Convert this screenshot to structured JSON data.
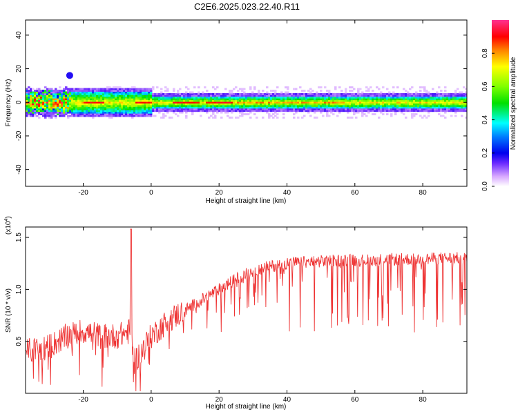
{
  "chart_data": [
    {
      "type": "heatmap",
      "title": "C2E6.2025.023.22.40.R11",
      "xlabel": "Height of straight line (km)",
      "ylabel": "Frequency (Hz)",
      "xlim": [
        -37,
        93
      ],
      "ylim": [
        -50,
        49
      ],
      "xticks": [
        "-20",
        "0",
        "20",
        "40",
        "60",
        "80"
      ],
      "yticks": [
        "40",
        "20",
        "0",
        "-20",
        "-40"
      ],
      "colorbar": {
        "label": "Normalized spectral amplitude",
        "range": [
          0,
          1
        ],
        "ticks": [
          "0.0",
          "0.2",
          "0.4",
          "0.6",
          "0.8"
        ]
      },
      "band": {
        "center_freq_hz": 0,
        "half_width_hz_far": 3.5,
        "half_width_hz_near": 6,
        "noisy_region_km": [
          -37,
          -24
        ],
        "isolated_patch": {
          "x_km": -24,
          "freq_hz": 16
        }
      }
    },
    {
      "type": "line",
      "title": "",
      "xlabel": "Height of straight line (km)",
      "ylabel": "SNR (10 * v/v)",
      "multiplier": "(x10",
      "multiplier_exp": "4",
      "xlim": [
        -37,
        93
      ],
      "ylim": [
        0,
        1.6
      ],
      "xticks": [
        "-20",
        "0",
        "20",
        "40",
        "60",
        "80"
      ],
      "yticks": [
        "1.5",
        "1.0",
        "0.5"
      ],
      "series": [
        {
          "color": "#ee3333",
          "trend_x": [
            -37,
            -30,
            -25,
            -20,
            -15,
            -10,
            -6,
            -5,
            -2,
            0,
            5,
            10,
            15,
            20,
            25,
            30,
            35,
            40,
            45,
            50,
            55,
            60,
            65,
            70,
            75,
            80,
            85,
            90,
            93
          ],
          "trend_y": [
            0.4,
            0.45,
            0.55,
            0.6,
            0.55,
            0.55,
            0.6,
            0.3,
            0.45,
            0.55,
            0.7,
            0.8,
            0.9,
            1.0,
            1.1,
            1.18,
            1.22,
            1.25,
            1.26,
            1.27,
            1.28,
            1.28,
            1.28,
            1.29,
            1.29,
            1.29,
            1.3,
            1.3,
            1.3
          ],
          "peak": {
            "x": -6,
            "y": 1.58
          }
        }
      ]
    }
  ],
  "colors": {
    "line": "#ee3333",
    "background": "#ffffff",
    "axis": "#000000"
  }
}
